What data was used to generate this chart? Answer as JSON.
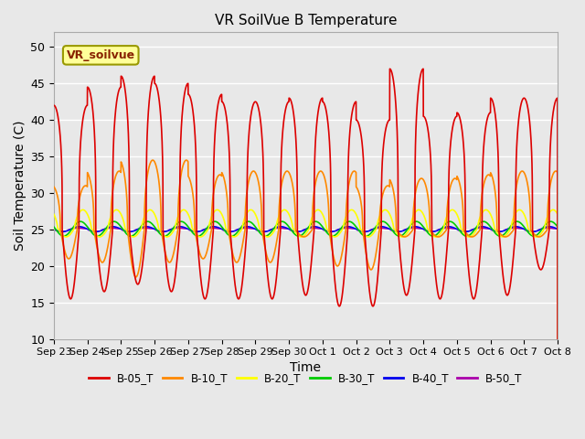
{
  "title": "VR SoilVue B Temperature",
  "xlabel": "Time",
  "ylabel": "Soil Temperature (C)",
  "ylim": [
    10,
    52
  ],
  "yticks": [
    10,
    15,
    20,
    25,
    30,
    35,
    40,
    45,
    50
  ],
  "bg_color": "#e8e8e8",
  "plot_bg_color": "#e8e8e8",
  "annotation_text": "VR_soilvue",
  "annotation_bg": "#ffff99",
  "annotation_border": "#cc9900",
  "xtick_labels": [
    "Sep 23",
    "Sep 24",
    "Sep 25",
    "Sep 26",
    "Sep 27",
    "Sep 28",
    "Sep 29",
    "Sep 30",
    "Oct 1",
    "Oct 2",
    "Oct 3",
    "Oct 4",
    "Oct 5",
    "Oct 6",
    "Oct 7",
    "Oct 8"
  ],
  "series": [
    {
      "label": "B-05_T",
      "color": "#dd0000"
    },
    {
      "label": "B-10_T",
      "color": "#ff8800"
    },
    {
      "label": "B-20_T",
      "color": "#ffff00"
    },
    {
      "label": "B-30_T",
      "color": "#00cc00"
    },
    {
      "label": "B-40_T",
      "color": "#0000ee"
    },
    {
      "label": "B-50_T",
      "color": "#aa00aa"
    }
  ]
}
